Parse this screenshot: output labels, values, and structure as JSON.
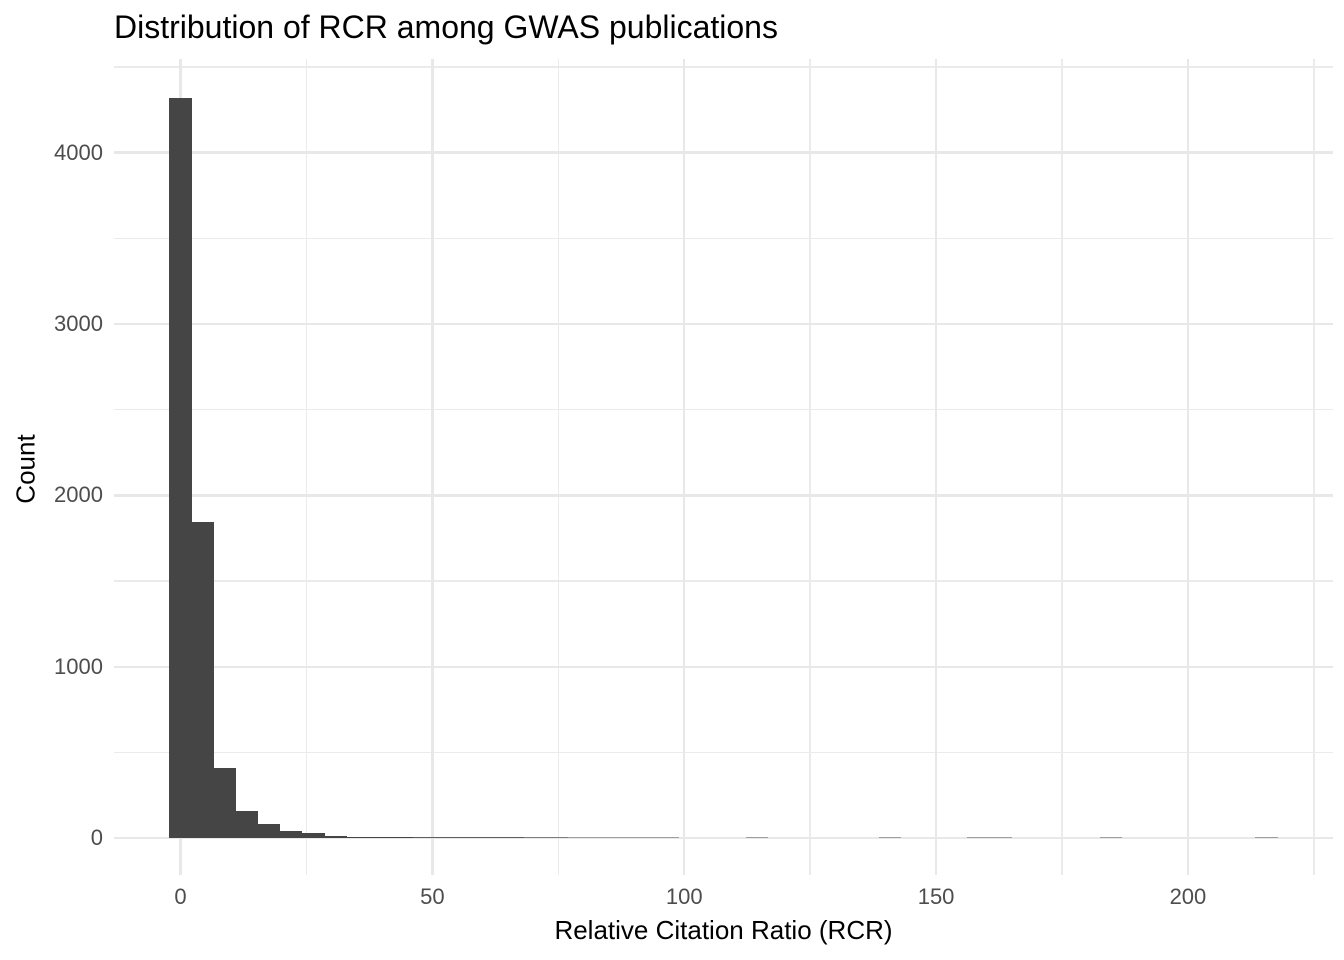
{
  "title": "Distribution of RCR among GWAS publications",
  "chart_data": {
    "type": "bar",
    "mark": "histogram",
    "title": "Distribution of RCR among GWAS publications",
    "xlabel": "Relative Citation Ratio (RCR)",
    "ylabel": "Count",
    "legend": "none",
    "grid": "on",
    "bar_color": "#454545",
    "grid_minor_color": "#ebebeb",
    "grid_major_color": "#e8e8e8",
    "tick_label_color": "#4d4d4d",
    "bin_width": 4.4,
    "bins": [
      {
        "x": 0.0,
        "count": 4320
      },
      {
        "x": 4.4,
        "count": 1845
      },
      {
        "x": 8.8,
        "count": 407
      },
      {
        "x": 13.2,
        "count": 160
      },
      {
        "x": 17.6,
        "count": 80
      },
      {
        "x": 22.0,
        "count": 41
      },
      {
        "x": 26.4,
        "count": 28
      },
      {
        "x": 30.8,
        "count": 13
      },
      {
        "x": 35.2,
        "count": 9
      },
      {
        "x": 39.6,
        "count": 7
      },
      {
        "x": 44.0,
        "count": 6
      },
      {
        "x": 48.4,
        "count": 5
      },
      {
        "x": 52.8,
        "count": 4
      },
      {
        "x": 57.2,
        "count": 4
      },
      {
        "x": 61.6,
        "count": 3
      },
      {
        "x": 66.0,
        "count": 3
      },
      {
        "x": 70.4,
        "count": 2
      },
      {
        "x": 74.8,
        "count": 2
      },
      {
        "x": 79.2,
        "count": 1
      },
      {
        "x": 83.6,
        "count": 1
      },
      {
        "x": 88.0,
        "count": 1
      },
      {
        "x": 92.4,
        "count": 1
      },
      {
        "x": 96.8,
        "count": 1
      },
      {
        "x": 114.4,
        "count": 1
      },
      {
        "x": 140.8,
        "count": 1
      },
      {
        "x": 158.4,
        "count": 1
      },
      {
        "x": 162.8,
        "count": 1
      },
      {
        "x": 184.8,
        "count": 1
      },
      {
        "x": 215.6,
        "count": 1
      }
    ],
    "x_ticks": [
      {
        "value": 0,
        "label": "0"
      },
      {
        "value": 50,
        "label": "50"
      },
      {
        "value": 100,
        "label": "100"
      },
      {
        "value": 150,
        "label": "150"
      },
      {
        "value": 200,
        "label": "200"
      }
    ],
    "y_ticks": [
      {
        "value": 0,
        "label": "0"
      },
      {
        "value": 1000,
        "label": "1000"
      },
      {
        "value": 2000,
        "label": "2000"
      },
      {
        "value": 3000,
        "label": "3000"
      },
      {
        "value": 4000,
        "label": "4000"
      }
    ],
    "x_minor_gridlines": [
      25,
      75,
      125,
      175,
      225
    ],
    "y_minor_gridlines": [
      500,
      1500,
      2500,
      3500,
      4500
    ],
    "x_domain": [
      -13.2,
      228.8
    ],
    "y_domain": [
      -215,
      4546
    ],
    "xlim_data": [
      0,
      220
    ],
    "ylim_data": [
      0,
      4320
    ]
  }
}
